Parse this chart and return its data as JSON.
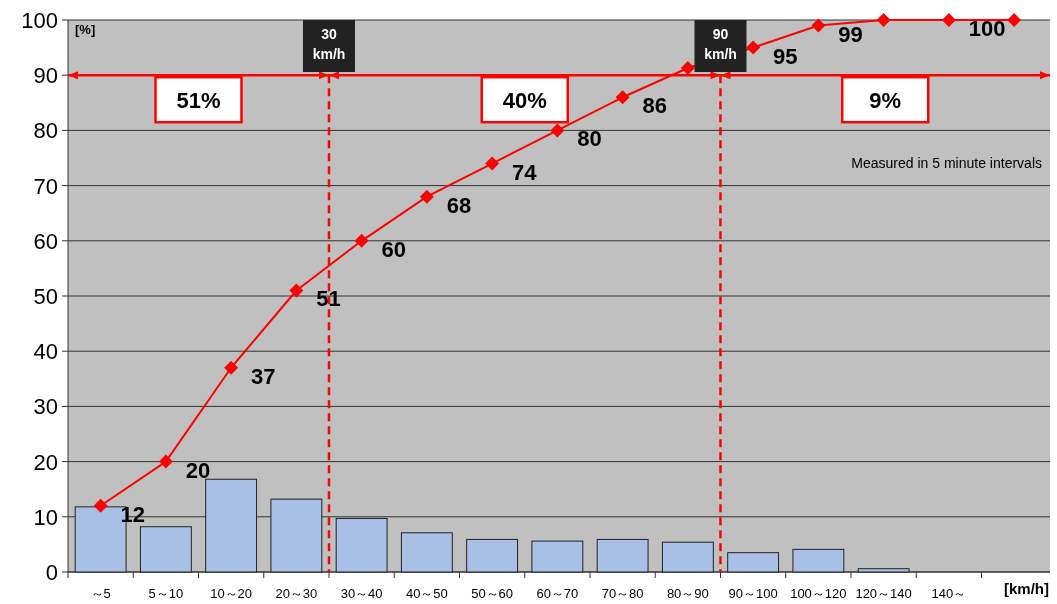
{
  "chart_data": {
    "type": "bar",
    "ylabel": "[%]",
    "xlabel": "[km/h]",
    "categories": [
      "～5",
      "5～10",
      "10～20",
      "20～30",
      "30～40",
      "40～50",
      "50～60",
      "60～70",
      "70～80",
      "80～90",
      "90～100",
      "100～120",
      "120～140",
      "140～",
      null
    ],
    "series": [
      {
        "color": "#a9bfe6",
        "values": [
          11.8,
          8.2,
          16.8,
          13.2,
          9.7,
          7.1,
          5.9,
          5.6,
          5.9,
          5.4,
          3.5,
          4.1,
          0.6,
          0,
          null
        ]
      },
      {
        "type": "line",
        "color": "#ff0000",
        "values": [
          12,
          20,
          37,
          51,
          60,
          68,
          74,
          80,
          86,
          91.3,
          95,
          99,
          100,
          100,
          100
        ],
        "value_labels": [
          "12",
          "20",
          "37",
          "51",
          "60",
          "68",
          "74",
          "80",
          "86",
          null,
          "95",
          "99",
          null,
          "100",
          null
        ]
      }
    ],
    "ylim": [
      0,
      100
    ],
    "yticks": [
      0,
      10,
      20,
      30,
      40,
      50,
      60,
      70,
      80,
      90,
      100
    ],
    "grid": "y",
    "marker": "diamond",
    "line_style": "solid",
    "ref_lines": [
      {
        "axis": "y",
        "value": 90,
        "color": "#ff0000",
        "line_style": "solid"
      }
    ],
    "annotations": [
      "30 km/h",
      "90 km/h",
      "51%",
      "40%",
      "9%",
      "Measured in 5 minute intervals"
    ]
  }
}
